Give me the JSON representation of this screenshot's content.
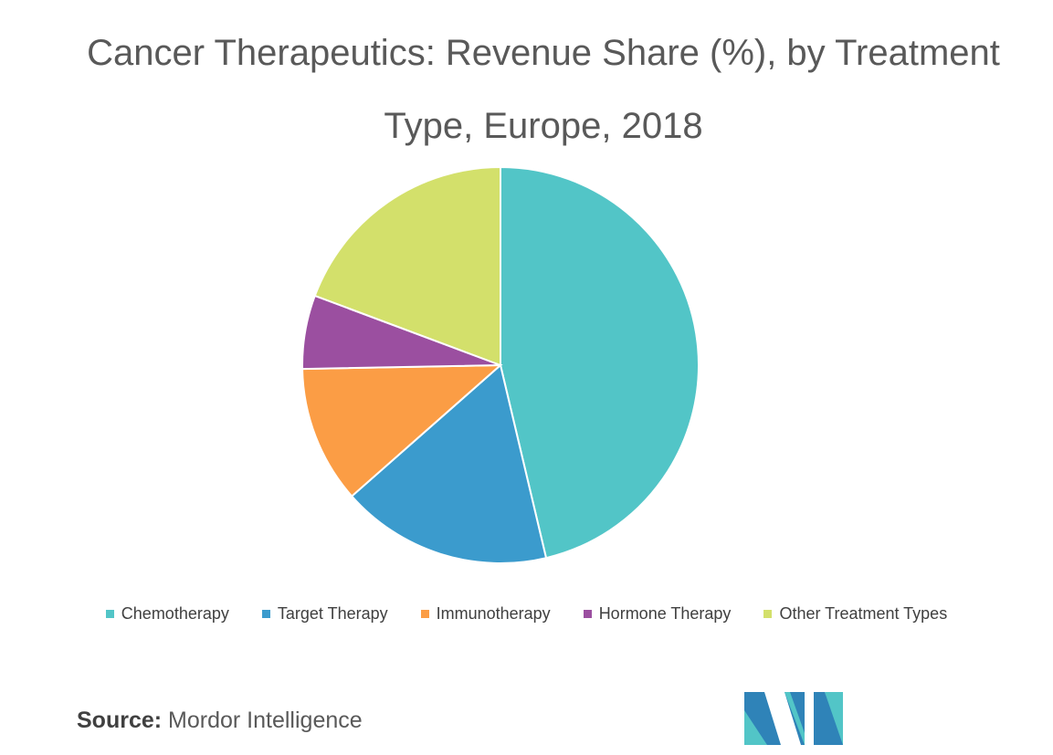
{
  "chart_data": {
    "type": "pie",
    "title": "Cancer Therapeutics: Revenue Share (%), by Treatment Type, Europe, 2018",
    "categories": [
      "Chemotherapy",
      "Target Therapy",
      "Immunotherapy",
      "Hormone Therapy",
      "Other Treatment Types"
    ],
    "values": [
      46.3,
      17.2,
      11.2,
      6,
      19.3
    ],
    "colors": [
      "#52c5c7",
      "#3b9bcd",
      "#fb9d45",
      "#9b4fa0",
      "#d3e06b"
    ],
    "legend": "bottom"
  },
  "footer": {
    "source_label": "Source:",
    "source_text": "Mordor Intelligence"
  }
}
